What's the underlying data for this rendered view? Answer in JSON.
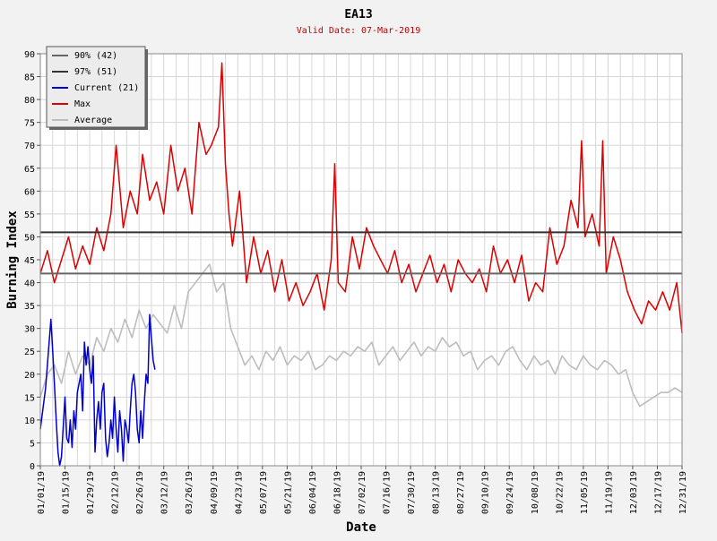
{
  "colors": {
    "background": "#f2f2f2",
    "plot_background": "#ffffff",
    "grid": "#d6d6d6",
    "title": "#000000",
    "subtitle": "#c00000",
    "p90": "#666666",
    "p97": "#333333",
    "current": "#0000cc",
    "max": "#dd0000",
    "average": "#bdbdbd"
  },
  "chart_data": {
    "type": "line",
    "title": "EA13",
    "subtitle": "Valid Date: 07-Mar-2019",
    "xlabel": "Date",
    "ylabel": "Burning Index",
    "ylim": [
      0,
      90
    ],
    "yticks": [
      0,
      5,
      10,
      15,
      20,
      25,
      30,
      35,
      40,
      45,
      50,
      55,
      60,
      65,
      70,
      75,
      80,
      85,
      90
    ],
    "xlim": [
      "2019-01-01",
      "2019-12-31"
    ],
    "xtick_labels": [
      "01/01/19",
      "01/15/19",
      "01/29/19",
      "02/12/19",
      "02/26/19",
      "03/12/19",
      "03/26/19",
      "04/09/19",
      "04/23/19",
      "05/07/19",
      "05/21/19",
      "06/04/19",
      "06/18/19",
      "07/02/19",
      "07/16/19",
      "07/30/19",
      "08/13/19",
      "08/27/19",
      "09/10/19",
      "09/24/19",
      "10/08/19",
      "10/22/19",
      "11/05/19",
      "11/19/19",
      "12/03/19",
      "12/17/19",
      "12/31/19"
    ],
    "grid": true,
    "legend_position": "top-left",
    "reference_lines": [
      {
        "name": "90% (42)",
        "value": 42
      },
      {
        "name": "97% (51)",
        "value": 51
      }
    ],
    "series": [
      {
        "name": "Current (21)",
        "x": [
          "2019-01-01",
          "2019-01-04",
          "2019-01-07",
          "2019-01-08",
          "2019-01-09",
          "2019-01-10",
          "2019-01-11",
          "2019-01-12",
          "2019-01-13",
          "2019-01-15",
          "2019-01-16",
          "2019-01-17",
          "2019-01-18",
          "2019-01-19",
          "2019-01-20",
          "2019-01-21",
          "2019-01-22",
          "2019-01-24",
          "2019-01-25",
          "2019-01-26",
          "2019-01-27",
          "2019-01-28",
          "2019-01-29",
          "2019-01-30",
          "2019-01-31",
          "2019-02-01",
          "2019-02-02",
          "2019-02-03",
          "2019-02-04",
          "2019-02-05",
          "2019-02-06",
          "2019-02-07",
          "2019-02-08",
          "2019-02-09",
          "2019-02-10",
          "2019-02-11",
          "2019-02-12",
          "2019-02-13",
          "2019-02-14",
          "2019-02-15",
          "2019-02-16",
          "2019-02-17",
          "2019-02-18",
          "2019-02-19",
          "2019-02-20",
          "2019-02-21",
          "2019-02-22",
          "2019-02-23",
          "2019-02-24",
          "2019-02-25",
          "2019-02-26",
          "2019-02-27",
          "2019-02-28",
          "2019-03-01",
          "2019-03-02",
          "2019-03-03",
          "2019-03-04",
          "2019-03-05",
          "2019-03-06",
          "2019-03-07"
        ],
        "values": [
          8,
          17,
          32,
          25,
          18,
          10,
          3,
          0,
          2,
          15,
          6,
          5,
          10,
          4,
          12,
          8,
          16,
          20,
          12,
          27,
          22,
          26,
          21,
          18,
          24,
          3,
          10,
          14,
          8,
          16,
          18,
          6,
          2,
          5,
          10,
          6,
          15,
          8,
          3,
          12,
          8,
          1,
          10,
          8,
          5,
          12,
          18,
          20,
          16,
          8,
          5,
          12,
          6,
          14,
          20,
          18,
          33,
          28,
          23,
          21
        ]
      },
      {
        "name": "Max",
        "x": [
          "2019-01-01",
          "2019-01-05",
          "2019-01-09",
          "2019-01-13",
          "2019-01-17",
          "2019-01-21",
          "2019-01-25",
          "2019-01-29",
          "2019-02-02",
          "2019-02-06",
          "2019-02-10",
          "2019-02-13",
          "2019-02-17",
          "2019-02-21",
          "2019-02-25",
          "2019-02-28",
          "2019-03-04",
          "2019-03-08",
          "2019-03-12",
          "2019-03-16",
          "2019-03-20",
          "2019-03-24",
          "2019-03-28",
          "2019-04-01",
          "2019-04-05",
          "2019-04-08",
          "2019-04-10",
          "2019-04-12",
          "2019-04-14",
          "2019-04-16",
          "2019-04-18",
          "2019-04-20",
          "2019-04-24",
          "2019-04-28",
          "2019-05-02",
          "2019-05-06",
          "2019-05-10",
          "2019-05-14",
          "2019-05-18",
          "2019-05-22",
          "2019-05-26",
          "2019-05-30",
          "2019-06-03",
          "2019-06-07",
          "2019-06-11",
          "2019-06-15",
          "2019-06-17",
          "2019-06-19",
          "2019-06-23",
          "2019-06-27",
          "2019-07-01",
          "2019-07-05",
          "2019-07-09",
          "2019-07-13",
          "2019-07-17",
          "2019-07-21",
          "2019-07-25",
          "2019-07-29",
          "2019-08-02",
          "2019-08-06",
          "2019-08-10",
          "2019-08-14",
          "2019-08-18",
          "2019-08-22",
          "2019-08-26",
          "2019-08-30",
          "2019-09-03",
          "2019-09-07",
          "2019-09-11",
          "2019-09-15",
          "2019-09-19",
          "2019-09-23",
          "2019-09-27",
          "2019-10-01",
          "2019-10-05",
          "2019-10-09",
          "2019-10-13",
          "2019-10-17",
          "2019-10-21",
          "2019-10-25",
          "2019-10-29",
          "2019-11-02",
          "2019-11-04",
          "2019-11-06",
          "2019-11-10",
          "2019-11-14",
          "2019-11-16",
          "2019-11-18",
          "2019-11-22",
          "2019-11-26",
          "2019-11-30",
          "2019-12-04",
          "2019-12-08",
          "2019-12-12",
          "2019-12-16",
          "2019-12-20",
          "2019-12-24",
          "2019-12-28",
          "2019-12-31"
        ],
        "values": [
          42,
          47,
          40,
          45,
          50,
          43,
          48,
          44,
          52,
          47,
          55,
          70,
          52,
          60,
          55,
          68,
          58,
          62,
          55,
          70,
          60,
          65,
          55,
          75,
          68,
          70,
          72,
          74,
          88,
          66,
          55,
          48,
          60,
          40,
          50,
          42,
          47,
          38,
          45,
          36,
          40,
          35,
          38,
          42,
          34,
          45,
          66,
          40,
          38,
          50,
          43,
          52,
          48,
          45,
          42,
          47,
          40,
          44,
          38,
          42,
          46,
          40,
          44,
          38,
          45,
          42,
          40,
          43,
          38,
          48,
          42,
          45,
          40,
          46,
          36,
          40,
          38,
          52,
          44,
          48,
          58,
          52,
          71,
          50,
          55,
          48,
          71,
          42,
          50,
          45,
          38,
          34,
          31,
          36,
          34,
          38,
          34,
          40,
          29
        ]
      },
      {
        "name": "Average",
        "x": [
          "2019-01-01",
          "2019-01-05",
          "2019-01-09",
          "2019-01-13",
          "2019-01-17",
          "2019-01-21",
          "2019-01-25",
          "2019-01-29",
          "2019-02-02",
          "2019-02-06",
          "2019-02-10",
          "2019-02-14",
          "2019-02-18",
          "2019-02-22",
          "2019-02-26",
          "2019-03-02",
          "2019-03-06",
          "2019-03-10",
          "2019-03-14",
          "2019-03-18",
          "2019-03-22",
          "2019-03-26",
          "2019-03-30",
          "2019-04-03",
          "2019-04-07",
          "2019-04-11",
          "2019-04-15",
          "2019-04-19",
          "2019-04-23",
          "2019-04-27",
          "2019-05-01",
          "2019-05-05",
          "2019-05-09",
          "2019-05-13",
          "2019-05-17",
          "2019-05-21",
          "2019-05-25",
          "2019-05-29",
          "2019-06-02",
          "2019-06-06",
          "2019-06-10",
          "2019-06-14",
          "2019-06-18",
          "2019-06-22",
          "2019-06-26",
          "2019-06-30",
          "2019-07-04",
          "2019-07-08",
          "2019-07-12",
          "2019-07-16",
          "2019-07-20",
          "2019-07-24",
          "2019-07-28",
          "2019-08-01",
          "2019-08-05",
          "2019-08-09",
          "2019-08-13",
          "2019-08-17",
          "2019-08-21",
          "2019-08-25",
          "2019-08-29",
          "2019-09-02",
          "2019-09-06",
          "2019-09-10",
          "2019-09-14",
          "2019-09-18",
          "2019-09-22",
          "2019-09-26",
          "2019-09-30",
          "2019-10-04",
          "2019-10-08",
          "2019-10-12",
          "2019-10-16",
          "2019-10-20",
          "2019-10-24",
          "2019-10-28",
          "2019-11-01",
          "2019-11-05",
          "2019-11-09",
          "2019-11-13",
          "2019-11-17",
          "2019-11-21",
          "2019-11-25",
          "2019-11-29",
          "2019-12-03",
          "2019-12-07",
          "2019-12-11",
          "2019-12-15",
          "2019-12-19",
          "2019-12-23",
          "2019-12-27",
          "2019-12-31"
        ],
        "values": [
          15,
          20,
          22,
          18,
          25,
          20,
          24,
          22,
          28,
          25,
          30,
          27,
          32,
          28,
          34,
          30,
          33,
          31,
          29,
          35,
          30,
          38,
          40,
          42,
          44,
          38,
          40,
          30,
          26,
          22,
          24,
          21,
          25,
          23,
          26,
          22,
          24,
          23,
          25,
          21,
          22,
          24,
          23,
          25,
          24,
          26,
          25,
          27,
          22,
          24,
          26,
          23,
          25,
          27,
          24,
          26,
          25,
          28,
          26,
          27,
          24,
          25,
          21,
          23,
          24,
          22,
          25,
          26,
          23,
          21,
          24,
          22,
          23,
          20,
          24,
          22,
          21,
          24,
          22,
          21,
          23,
          22,
          20,
          21,
          16,
          13,
          14,
          15,
          16,
          16,
          17,
          16
        ]
      }
    ]
  }
}
